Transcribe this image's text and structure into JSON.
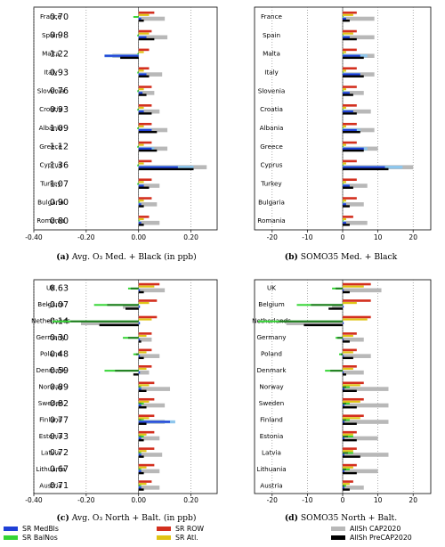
{
  "colors": {
    "AllSh_CAP2020": "#b8b8b8",
    "AllSh_PreCAP2020": "#000000",
    "SR_ROW": "#d32f1e",
    "SR_Atl": "#e0c414",
    "SR_MedBls": "#1f3fd6",
    "SR_BalNos": "#35d535",
    "SR_MedBls_light": "#8ec6ec",
    "SR_BalNos_dark": "#1f7a1f"
  },
  "legend": [
    {
      "key": "SR_MedBls",
      "label": "SR MedBls"
    },
    {
      "key": "SR_BalNos",
      "label": "SR BalNos"
    },
    {
      "key": "SR_ROW",
      "label": "SR ROW"
    },
    {
      "key": "SR_Atl",
      "label": "SR Atl."
    },
    {
      "key": "AllSh_CAP2020",
      "label": "AllSh CAP2020"
    },
    {
      "key": "AllSh_PreCAP2020",
      "label": "AllSh PreCAP2020"
    }
  ],
  "chart_data": [
    {
      "id": "a",
      "type": "bar",
      "orientation": "horizontal",
      "caption_bold": "(a)",
      "caption": "Avg. O₃ Med. + Black (in ppb)",
      "xlim": [
        -0.4,
        0.3
      ],
      "xticks": [
        -0.4,
        -0.2,
        0.0,
        0.2
      ],
      "xtick_labels": [
        "-0.40",
        "-0.20",
        "0.00",
        "0.20"
      ],
      "grid": "vertical dotted",
      "categories": [
        "France",
        "Spain",
        "Malta",
        "Italy",
        "Slovenia",
        "Croatia",
        "Albania",
        "Greece",
        "Cyprus",
        "Turkey",
        "Bulgaria",
        "Romania"
      ],
      "value_labels": [
        "0.70",
        "0.98",
        "1.22",
        "0.93",
        "0.76",
        "0.93",
        "1.09",
        "1.12",
        "1.36",
        "1.07",
        "0.90",
        "0.80"
      ],
      "series": [
        {
          "key": "SR_ROW",
          "values": [
            0.06,
            0.05,
            0.04,
            0.04,
            0.05,
            0.05,
            0.05,
            0.05,
            0.05,
            0.05,
            0.05,
            0.04
          ]
        },
        {
          "key": "SR_Atl",
          "values": [
            0.04,
            0.04,
            0.02,
            0.02,
            0.02,
            0.02,
            0.02,
            0.02,
            0.02,
            0.02,
            0.02,
            0.02
          ]
        },
        {
          "key": "SR_BalNos",
          "values": [
            -0.02,
            -0.005,
            -0.005,
            -0.005,
            -0.005,
            -0.005,
            -0.005,
            -0.005,
            -0.005,
            -0.005,
            0.005,
            0.005
          ]
        },
        {
          "key": "SR_MedBls",
          "values": [
            0.01,
            0.03,
            -0.13,
            0.03,
            0.015,
            0.02,
            0.05,
            0.05,
            0.15,
            0.02,
            0.01,
            0.01
          ],
          "light": [
            0.01,
            0.03,
            -0.13,
            0.03,
            0.015,
            0.02,
            0.05,
            0.06,
            0.21,
            0.02,
            0.01,
            0.01
          ]
        },
        {
          "key": "AllSh_PreCAP2020",
          "values": [
            0.02,
            0.06,
            -0.07,
            0.04,
            0.03,
            0.05,
            0.07,
            0.07,
            0.21,
            0.04,
            0.02,
            0.02
          ]
        },
        {
          "key": "AllSh_CAP2020",
          "values": [
            0.1,
            0.11,
            -0.1,
            0.09,
            0.06,
            0.08,
            0.11,
            0.11,
            0.26,
            0.08,
            0.07,
            0.08
          ]
        }
      ]
    },
    {
      "id": "b",
      "type": "bar",
      "orientation": "horizontal",
      "caption_bold": "(b)",
      "caption": "SOMO35 Med. + Black",
      "xlim": [
        -25,
        25
      ],
      "xticks": [
        -20,
        -10,
        0,
        10,
        20
      ],
      "xtick_labels": [
        "-20",
        "-10",
        "0",
        "10",
        "20"
      ],
      "grid": "vertical dotted",
      "categories": [
        "France",
        "Spain",
        "Malta",
        "Italy",
        "Slovenia",
        "Croatia",
        "Albania",
        "Greece",
        "Cyprus",
        "Turkey",
        "Bulgaria",
        "Romania"
      ],
      "series": [
        {
          "key": "SR_ROW",
          "values": [
            4,
            4,
            4,
            4,
            4,
            4,
            4,
            4,
            4,
            4,
            4,
            3
          ]
        },
        {
          "key": "SR_Atl",
          "values": [
            3,
            3,
            1,
            1,
            1,
            1,
            1,
            1,
            1,
            1,
            1,
            1
          ]
        },
        {
          "key": "SR_BalNos",
          "values": [
            0.3,
            0.3,
            0.3,
            0.3,
            0.3,
            0.3,
            0.3,
            0.3,
            0.3,
            0.3,
            0.3,
            0.3
          ]
        },
        {
          "key": "SR_MedBls",
          "values": [
            1,
            2,
            5,
            5,
            2,
            3,
            4,
            6,
            12,
            2,
            1,
            1
          ],
          "light": [
            1,
            2,
            7,
            5,
            2,
            3,
            5,
            7,
            17,
            2,
            1,
            1
          ]
        },
        {
          "key": "AllSh_PreCAP2020",
          "values": [
            2,
            4,
            6,
            6,
            3,
            4,
            5,
            6,
            13,
            3,
            2,
            2
          ]
        },
        {
          "key": "AllSh_CAP2020",
          "values": [
            9,
            9,
            9,
            9,
            6,
            8,
            9,
            10,
            20,
            7,
            6,
            7
          ]
        }
      ]
    },
    {
      "id": "c",
      "type": "bar",
      "orientation": "horizontal",
      "caption_bold": "(c)",
      "caption": "Avg. O₃ North + Balt. (in ppb)",
      "xlim": [
        -0.4,
        0.3
      ],
      "xticks": [
        -0.4,
        -0.2,
        0.0,
        0.2
      ],
      "xtick_labels": [
        "-0.40",
        "-0.20",
        "0.00",
        "0.20"
      ],
      "grid": "vertical dotted",
      "categories": [
        "UK",
        "Belgium",
        "Netherlands",
        "Germany",
        "Poland",
        "Denmark",
        "Norway",
        "Sweden",
        "Finland",
        "Estonia",
        "Latvia",
        "Lithuania",
        "Austria"
      ],
      "value_labels": [
        "0.63",
        "-0.07",
        "-0.14",
        "0.30",
        "0.48",
        "0.59",
        "0.89",
        "0.82",
        "0.77",
        "0.73",
        "0.72",
        "0.67",
        "0.71"
      ],
      "series": [
        {
          "key": "SR_ROW",
          "values": [
            0.08,
            0.07,
            0.07,
            0.05,
            0.05,
            0.05,
            0.06,
            0.06,
            0.06,
            0.06,
            0.06,
            0.06,
            0.05
          ]
        },
        {
          "key": "SR_Atl",
          "values": [
            0.06,
            0.04,
            0.05,
            0.03,
            0.03,
            0.03,
            0.04,
            0.04,
            0.04,
            0.03,
            0.03,
            0.03,
            0.03
          ]
        },
        {
          "key": "SR_BalNos",
          "values": [
            -0.04,
            -0.17,
            -0.33,
            -0.06,
            -0.02,
            -0.13,
            0.01,
            0.02,
            0.02,
            0.02,
            0.01,
            0.01,
            0.01
          ],
          "dark": [
            -0.03,
            -0.12,
            -0.26,
            -0.04,
            -0.01,
            -0.09,
            0.005,
            0.01,
            0.01,
            0.01,
            0.005,
            0.005,
            0.005
          ]
        },
        {
          "key": "SR_MedBls",
          "values": [
            0.005,
            0.005,
            0.005,
            0.005,
            0.005,
            0.005,
            0.01,
            0.01,
            0.12,
            0.01,
            0.01,
            0.01,
            0.01
          ],
          "light": [
            0.005,
            0.005,
            0.005,
            0.005,
            0.005,
            0.005,
            0.01,
            0.01,
            0.14,
            0.01,
            0.01,
            0.01,
            0.01
          ]
        },
        {
          "key": "AllSh_PreCAP2020",
          "values": [
            0.02,
            -0.05,
            -0.15,
            0.01,
            0.02,
            -0.02,
            0.03,
            0.03,
            0.03,
            0.02,
            0.02,
            0.02,
            0.02
          ]
        },
        {
          "key": "AllSh_CAP2020",
          "values": [
            0.1,
            -0.06,
            -0.22,
            0.05,
            0.08,
            0.04,
            0.12,
            0.1,
            0.1,
            0.08,
            0.09,
            0.08,
            0.08
          ]
        }
      ]
    },
    {
      "id": "d",
      "type": "bar",
      "orientation": "horizontal",
      "caption_bold": "(d)",
      "caption": "SOMO35 North + Balt.",
      "xlim": [
        -25,
        25
      ],
      "xticks": [
        -20,
        -10,
        0,
        10,
        20
      ],
      "xtick_labels": [
        "-20",
        "-10",
        "0",
        "10",
        "20"
      ],
      "grid": "vertical dotted",
      "categories": [
        "UK",
        "Belgium",
        "Netherlands",
        "Germany",
        "Poland",
        "Denmark",
        "Norway",
        "Sweden",
        "Finland",
        "Estonia",
        "Latvia",
        "Lithuania",
        "Austria"
      ],
      "series": [
        {
          "key": "SR_ROW",
          "values": [
            8,
            8,
            8,
            4,
            4,
            4,
            6,
            6,
            6,
            4,
            4,
            4,
            3
          ]
        },
        {
          "key": "SR_Atl",
          "values": [
            6,
            4,
            7,
            3,
            3,
            3,
            5,
            5,
            5,
            3,
            3,
            3,
            2
          ]
        },
        {
          "key": "SR_BalNos",
          "values": [
            -3,
            -13,
            -24,
            -2,
            -1,
            -5,
            2,
            2,
            2,
            3,
            3,
            2,
            1
          ],
          "dark": [
            -2,
            -9,
            -18,
            -1.5,
            -0.5,
            -3.5,
            1,
            1,
            1,
            1.5,
            1.5,
            1,
            0.5
          ]
        },
        {
          "key": "SR_MedBls",
          "values": [
            0.3,
            0.3,
            0.3,
            0.3,
            0.3,
            0.3,
            0.5,
            0.5,
            0.5,
            0.5,
            0.5,
            0.5,
            0.5
          ]
        },
        {
          "key": "AllSh_PreCAP2020",
          "values": [
            2,
            -4,
            -11,
            2,
            3,
            1,
            4,
            4,
            4,
            4,
            5,
            4,
            2
          ]
        },
        {
          "key": "AllSh_CAP2020",
          "values": [
            11,
            -3,
            -16,
            6,
            8,
            6,
            13,
            13,
            13,
            10,
            13,
            10,
            6
          ]
        }
      ]
    }
  ]
}
